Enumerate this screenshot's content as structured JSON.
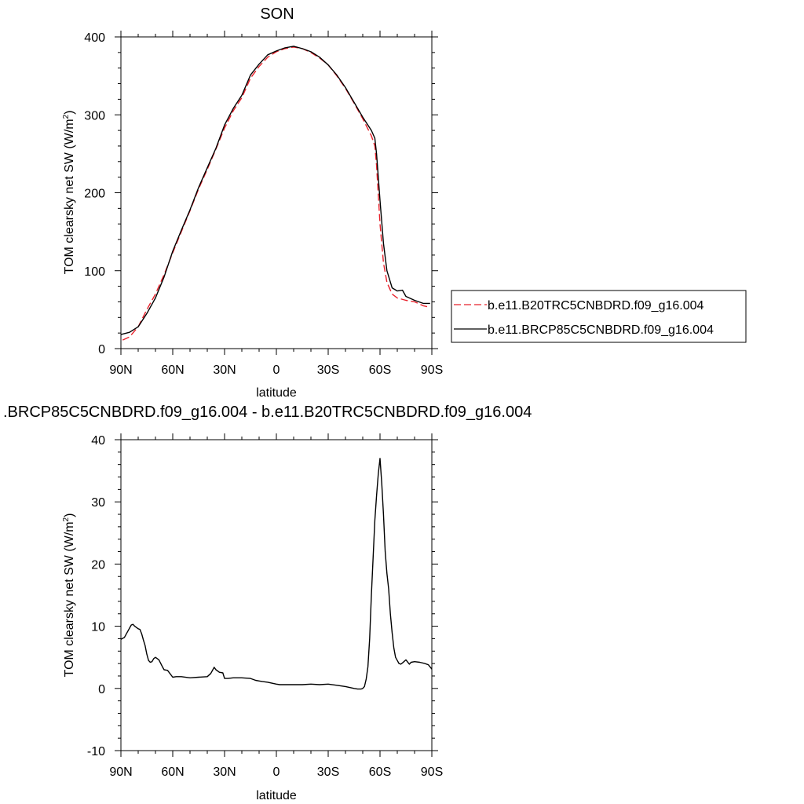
{
  "figure": {
    "top_title": "SON",
    "bottom_title": ".BRCP85C5CNBDRD.f09_g16.004 - b.e11.B20TRC5CNBDRD.f09_g16.004"
  },
  "chart_data": [
    {
      "type": "line",
      "title": "SON",
      "xlabel": "latitude",
      "ylabel": "TOM clearsky net SW (W/m2)",
      "ylabel_main": "TOM clearsky net SW (W/m",
      "ylabel_sup": "2",
      "ylabel_end": ")",
      "xlim": [
        90,
        -90
      ],
      "ylim": [
        0,
        400
      ],
      "xticks": [
        90,
        60,
        30,
        0,
        -30,
        -60,
        -90
      ],
      "xtick_labels": [
        "90N",
        "60N",
        "30N",
        "0",
        "30S",
        "60S",
        "90S"
      ],
      "yticks": [
        0,
        100,
        200,
        300,
        400
      ],
      "ytick_labels": [
        "0",
        "100",
        "200",
        "300",
        "400"
      ],
      "legend_position": "right",
      "series": [
        {
          "name": "b.e11.B20TRC5CNBDRD.f09_g16.004",
          "color": "#e8202a",
          "dash": "dashed",
          "x": [
            89,
            85,
            80,
            75,
            70,
            65,
            60,
            55,
            50,
            45,
            40,
            35,
            30,
            25,
            20,
            15,
            10,
            5,
            0,
            -5,
            -10,
            -15,
            -20,
            -25,
            -30,
            -35,
            -40,
            -45,
            -50,
            -55,
            -57,
            -58,
            -60,
            -62,
            -64,
            -67,
            -70,
            -75,
            -80,
            -85,
            -89
          ],
          "y": [
            11,
            15,
            28,
            50,
            70,
            95,
            123,
            150,
            177,
            205,
            230,
            256,
            283,
            305,
            322,
            347,
            362,
            374,
            381,
            385,
            387,
            385,
            380,
            373,
            364,
            350,
            334,
            315,
            295,
            273,
            260,
            235,
            160,
            110,
            85,
            70,
            65,
            62,
            60,
            55,
            53
          ]
        },
        {
          "name": "b.e11.BRCP85C5CNBDRD.f09_g16.004",
          "color": "#000000",
          "dash": "solid",
          "x": [
            90,
            85,
            80,
            75,
            70,
            65,
            60,
            55,
            50,
            45,
            40,
            35,
            30,
            25,
            20,
            15,
            10,
            5,
            0,
            -5,
            -10,
            -15,
            -20,
            -25,
            -30,
            -35,
            -40,
            -45,
            -50,
            -55,
            -57,
            -58,
            -60,
            -62,
            -64,
            -67,
            -70,
            -73,
            -75,
            -80,
            -85,
            -89
          ],
          "y": [
            18,
            21,
            28,
            45,
            65,
            92,
            125,
            152,
            178,
            207,
            232,
            257,
            287,
            308,
            325,
            351,
            365,
            377,
            382,
            386,
            388,
            385,
            381,
            374,
            364,
            351,
            335,
            316,
            297,
            280,
            270,
            250,
            190,
            135,
            100,
            78,
            74,
            75,
            67,
            62,
            58,
            58
          ]
        }
      ]
    },
    {
      "type": "line",
      "title": ".BRCP85C5CNBDRD.f09_g16.004 - b.e11.B20TRC5CNBDRD.f09_g16.004",
      "xlabel": "latitude",
      "ylabel": "TOM clearsky net SW (W/m2)",
      "ylabel_main": "TOM clearsky net SW (W/m",
      "ylabel_sup": "2",
      "ylabel_end": ")",
      "xlim": [
        90,
        -90
      ],
      "ylim": [
        -10,
        40
      ],
      "xticks": [
        90,
        60,
        30,
        0,
        -30,
        -60,
        -90
      ],
      "xtick_labels": [
        "90N",
        "60N",
        "30N",
        "0",
        "30S",
        "60S",
        "90S"
      ],
      "yticks": [
        -10,
        0,
        10,
        20,
        30,
        40
      ],
      "ytick_labels": [
        "-10",
        "0",
        "10",
        "20",
        "30",
        "40"
      ],
      "series": [
        {
          "color": "#000000",
          "dash": "solid",
          "x": [
            90,
            88,
            86,
            84,
            83,
            82,
            80,
            79,
            78,
            77,
            76,
            75,
            74,
            73,
            72,
            71,
            70,
            68,
            66,
            65,
            63,
            60,
            58,
            55,
            50,
            45,
            40,
            38,
            36,
            35,
            33,
            31,
            30,
            28,
            25,
            20,
            15,
            12,
            10,
            8,
            5,
            0,
            -2,
            -5,
            -8,
            -10,
            -15,
            -20,
            -25,
            -30,
            -35,
            -40,
            -45,
            -47,
            -49,
            -50,
            -51,
            -52,
            -53,
            -54,
            -55,
            -56,
            -57,
            -58,
            -59,
            -60,
            -61,
            -62,
            -63,
            -64,
            -65,
            -66,
            -67,
            -68,
            -69,
            -70,
            -71,
            -72,
            -73,
            -75,
            -77,
            -78,
            -80,
            -83,
            -86,
            -88,
            -90
          ],
          "y": [
            7.9,
            8.2,
            9.2,
            10.2,
            10.3,
            10,
            9.6,
            9.5,
            8.8,
            7.8,
            6.9,
            5.5,
            4.5,
            4.2,
            4.3,
            4.8,
            5.0,
            4.6,
            3.5,
            3.0,
            2.9,
            1.8,
            1.9,
            1.9,
            1.7,
            1.8,
            1.9,
            2.4,
            3.4,
            3.0,
            2.6,
            2.5,
            1.6,
            1.6,
            1.7,
            1.7,
            1.6,
            1.3,
            1.2,
            1.1,
            1.0,
            0.7,
            0.6,
            0.6,
            0.6,
            0.6,
            0.6,
            0.7,
            0.6,
            0.7,
            0.5,
            0.3,
            0.0,
            -0.1,
            -0.1,
            0.0,
            0.3,
            1.5,
            3.5,
            8.0,
            15.0,
            21.0,
            27.0,
            31.0,
            34.5,
            37.0,
            33.0,
            28.0,
            22.0,
            18.5,
            16.0,
            12.0,
            9.0,
            6.5,
            5.0,
            4.5,
            4.0,
            3.9,
            4.1,
            4.6,
            3.9,
            4.2,
            4.3,
            4.2,
            4.0,
            3.8,
            3.1
          ]
        }
      ]
    }
  ]
}
